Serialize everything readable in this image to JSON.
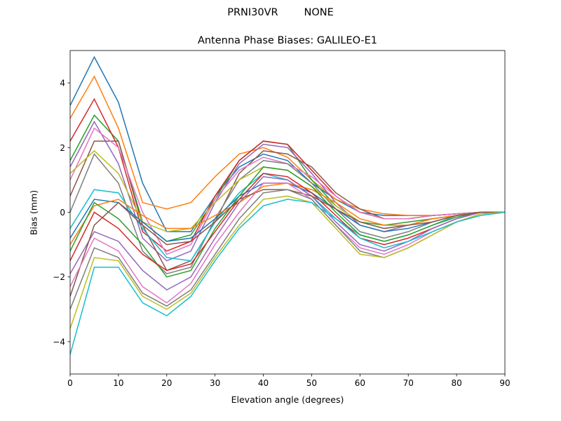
{
  "chart_data": {
    "type": "line",
    "suptitle": "PRNI30VR        NONE",
    "title": "Antenna Phase Biases: GALILEO-E1",
    "xlabel": "Elevation angle (degrees)",
    "ylabel": "Bias (mm)",
    "xlim": [
      0,
      90
    ],
    "ylim": [
      -5,
      5
    ],
    "xticks": [
      0,
      10,
      20,
      30,
      40,
      50,
      60,
      70,
      80,
      90
    ],
    "yticks": [
      -4,
      -2,
      0,
      2,
      4
    ],
    "grid": false,
    "legend": "none",
    "colors": [
      "#1f77b4",
      "#ff7f0e",
      "#2ca02c",
      "#d62728",
      "#9467bd",
      "#8c564b",
      "#e377c2",
      "#7f7f7f",
      "#bcbd22",
      "#17becf"
    ],
    "x": [
      0,
      5,
      10,
      15,
      20,
      25,
      30,
      35,
      40,
      45,
      50,
      55,
      60,
      65,
      70,
      75,
      80,
      85,
      90
    ],
    "series": [
      {
        "values": [
          3.3,
          4.8,
          3.4,
          0.9,
          -0.6,
          -0.6,
          0.5,
          1.4,
          1.8,
          1.6,
          0.9,
          0.4,
          0.0,
          -0.1,
          -0.1,
          -0.1,
          -0.05,
          0,
          0
        ]
      },
      {
        "values": [
          2.9,
          4.2,
          2.6,
          0.3,
          0.1,
          0.3,
          1.1,
          1.8,
          2.0,
          1.7,
          1.0,
          0.4,
          0.1,
          -0.05,
          -0.1,
          -0.1,
          -0.05,
          0,
          0
        ]
      },
      {
        "values": [
          1.6,
          3.0,
          2.2,
          -0.3,
          -0.9,
          -0.7,
          0.4,
          1.6,
          2.2,
          2.1,
          1.0,
          0.2,
          -0.3,
          -0.4,
          -0.3,
          -0.2,
          -0.1,
          0,
          0
        ]
      },
      {
        "values": [
          2.2,
          3.5,
          2.0,
          -0.6,
          -1.2,
          -0.9,
          0.5,
          1.6,
          2.2,
          2.1,
          1.3,
          0.5,
          0.0,
          -0.2,
          -0.2,
          -0.1,
          -0.05,
          0,
          0
        ]
      },
      {
        "values": [
          1.4,
          2.8,
          1.5,
          -0.8,
          -1.5,
          -1.2,
          0.3,
          1.5,
          2.1,
          2.0,
          1.2,
          0.3,
          -0.4,
          -0.6,
          -0.4,
          -0.2,
          -0.1,
          0,
          0
        ]
      },
      {
        "values": [
          0.5,
          2.2,
          2.2,
          -0.4,
          -1.8,
          -1.5,
          -0.3,
          1.2,
          1.9,
          1.8,
          1.4,
          0.6,
          0.1,
          -0.2,
          -0.2,
          -0.1,
          -0.05,
          0,
          0
        ]
      },
      {
        "values": [
          1.0,
          2.6,
          2.0,
          0.0,
          -1.3,
          -1.0,
          0.4,
          1.3,
          1.7,
          1.5,
          1.1,
          0.5,
          0.0,
          -0.2,
          -0.2,
          -0.1,
          -0.05,
          0,
          0
        ]
      },
      {
        "values": [
          0.0,
          1.8,
          0.9,
          -1.2,
          -1.9,
          -1.7,
          -0.2,
          1.0,
          1.6,
          1.5,
          0.9,
          0.1,
          -0.6,
          -0.8,
          -0.6,
          -0.3,
          -0.1,
          0,
          0
        ]
      },
      {
        "values": [
          1.2,
          1.9,
          1.2,
          -0.3,
          -0.6,
          -0.5,
          0.3,
          1.0,
          1.4,
          1.3,
          0.8,
          0.2,
          -0.3,
          -0.5,
          -0.4,
          -0.2,
          -0.1,
          0,
          0
        ]
      },
      {
        "values": [
          -0.5,
          0.7,
          0.6,
          -0.5,
          -1.4,
          -1.5,
          -0.3,
          0.6,
          1.2,
          1.0,
          0.5,
          -0.2,
          -0.7,
          -0.9,
          -0.7,
          -0.4,
          -0.1,
          0,
          0
        ]
      },
      {
        "values": [
          -0.8,
          0.4,
          0.3,
          -0.3,
          -0.9,
          -0.8,
          -0.2,
          0.5,
          0.9,
          0.9,
          0.6,
          0.1,
          -0.4,
          -0.6,
          -0.5,
          -0.3,
          -0.1,
          0,
          0
        ]
      },
      {
        "values": [
          -1.0,
          0.2,
          0.4,
          -0.1,
          -0.5,
          -0.5,
          -0.1,
          0.3,
          0.8,
          0.9,
          0.7,
          0.3,
          -0.2,
          -0.4,
          -0.4,
          -0.2,
          -0.1,
          0,
          0
        ]
      },
      {
        "values": [
          -1.2,
          0.3,
          -0.2,
          -1.0,
          -2.0,
          -1.8,
          -0.5,
          0.5,
          1.4,
          1.3,
          0.8,
          0.0,
          -0.7,
          -0.9,
          -0.7,
          -0.4,
          -0.15,
          0,
          0
        ]
      },
      {
        "values": [
          -1.5,
          0.0,
          -0.5,
          -1.3,
          -1.8,
          -1.6,
          -0.6,
          0.4,
          1.2,
          1.1,
          0.6,
          -0.1,
          -0.8,
          -1.0,
          -0.8,
          -0.5,
          -0.2,
          0,
          0
        ]
      },
      {
        "values": [
          -1.9,
          -0.6,
          -0.9,
          -1.8,
          -2.4,
          -2.0,
          -0.8,
          0.3,
          1.1,
          1.0,
          0.5,
          -0.3,
          -1.0,
          -1.2,
          -0.9,
          -0.5,
          -0.2,
          0,
          0
        ]
      },
      {
        "values": [
          -2.6,
          -0.4,
          0.3,
          -0.4,
          -1.0,
          -0.9,
          -0.3,
          0.4,
          0.7,
          0.7,
          0.5,
          0.1,
          -0.3,
          -0.5,
          -0.4,
          -0.3,
          -0.1,
          0,
          0
        ]
      },
      {
        "values": [
          -2.3,
          -0.8,
          -1.2,
          -2.3,
          -2.8,
          -2.2,
          -1.0,
          0.0,
          0.9,
          0.9,
          0.4,
          -0.4,
          -1.1,
          -1.3,
          -1.0,
          -0.6,
          -0.3,
          -0.05,
          0
        ]
      },
      {
        "values": [
          -3.0,
          -1.1,
          -1.4,
          -2.5,
          -2.9,
          -2.4,
          -1.3,
          -0.2,
          0.6,
          0.7,
          0.4,
          -0.4,
          -1.2,
          -1.4,
          -1.1,
          -0.7,
          -0.3,
          -0.05,
          0
        ]
      },
      {
        "values": [
          -3.6,
          -1.4,
          -1.5,
          -2.6,
          -3.0,
          -2.5,
          -1.4,
          -0.4,
          0.4,
          0.5,
          0.3,
          -0.5,
          -1.3,
          -1.4,
          -1.1,
          -0.7,
          -0.3,
          -0.05,
          0
        ]
      },
      {
        "values": [
          -4.4,
          -1.7,
          -1.7,
          -2.8,
          -3.2,
          -2.6,
          -1.5,
          -0.5,
          0.2,
          0.4,
          0.3,
          -0.2,
          -0.8,
          -1.1,
          -0.9,
          -0.6,
          -0.3,
          -0.1,
          0
        ]
      }
    ]
  }
}
